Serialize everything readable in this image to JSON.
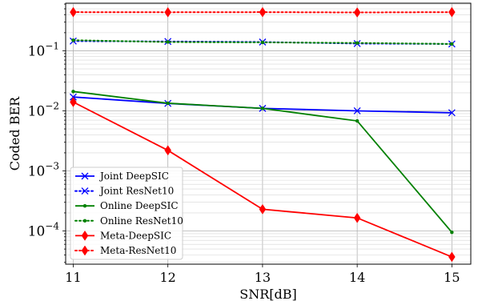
{
  "chart_data": {
    "type": "line",
    "xlabel": "SNR[dB]",
    "ylabel": "Coded BER",
    "yscale": "log",
    "xlim": [
      10.92,
      15.2
    ],
    "ylim": [
      2.8e-05,
      0.62
    ],
    "grid": true,
    "legend_position": "lower-left",
    "x_ticks": [
      11,
      12,
      13,
      14,
      15
    ],
    "y_ticks": [
      {
        "value": 0.1,
        "base": "10",
        "exp": "−1"
      },
      {
        "value": 0.01,
        "base": "10",
        "exp": "−2"
      },
      {
        "value": 0.001,
        "base": "10",
        "exp": "−3"
      },
      {
        "value": 0.0001,
        "base": "10",
        "exp": "−4"
      }
    ],
    "x": [
      11,
      12,
      13,
      14,
      15
    ],
    "series": [
      {
        "name": "Joint DeepSIC",
        "color": "#0000ff",
        "dash": "solid",
        "marker": "x",
        "values": [
          0.017,
          0.0133,
          0.011,
          0.01,
          0.0093
        ]
      },
      {
        "name": "Joint ResNet10",
        "color": "#0000ff",
        "dash": "dotted",
        "marker": "x",
        "values": [
          0.145,
          0.143,
          0.14,
          0.132,
          0.13
        ]
      },
      {
        "name": "Online DeepSIC",
        "color": "#008000",
        "dash": "solid",
        "marker": "dot",
        "values": [
          0.021,
          0.0134,
          0.011,
          0.0068,
          9.5e-05
        ]
      },
      {
        "name": "Online ResNet10",
        "color": "#008000",
        "dash": "dotted",
        "marker": "dot",
        "values": [
          0.15,
          0.14,
          0.138,
          0.135,
          0.13
        ]
      },
      {
        "name": "Meta-DeepSIC",
        "color": "#ff0000",
        "dash": "solid",
        "marker": "diamond",
        "values": [
          0.014,
          0.0022,
          0.00023,
          0.000165,
          3.7e-05
        ]
      },
      {
        "name": "Meta-ResNet10",
        "color": "#ff0000",
        "dash": "dotted",
        "marker": "diamond",
        "values": [
          0.44,
          0.438,
          0.44,
          0.435,
          0.44
        ]
      }
    ]
  }
}
